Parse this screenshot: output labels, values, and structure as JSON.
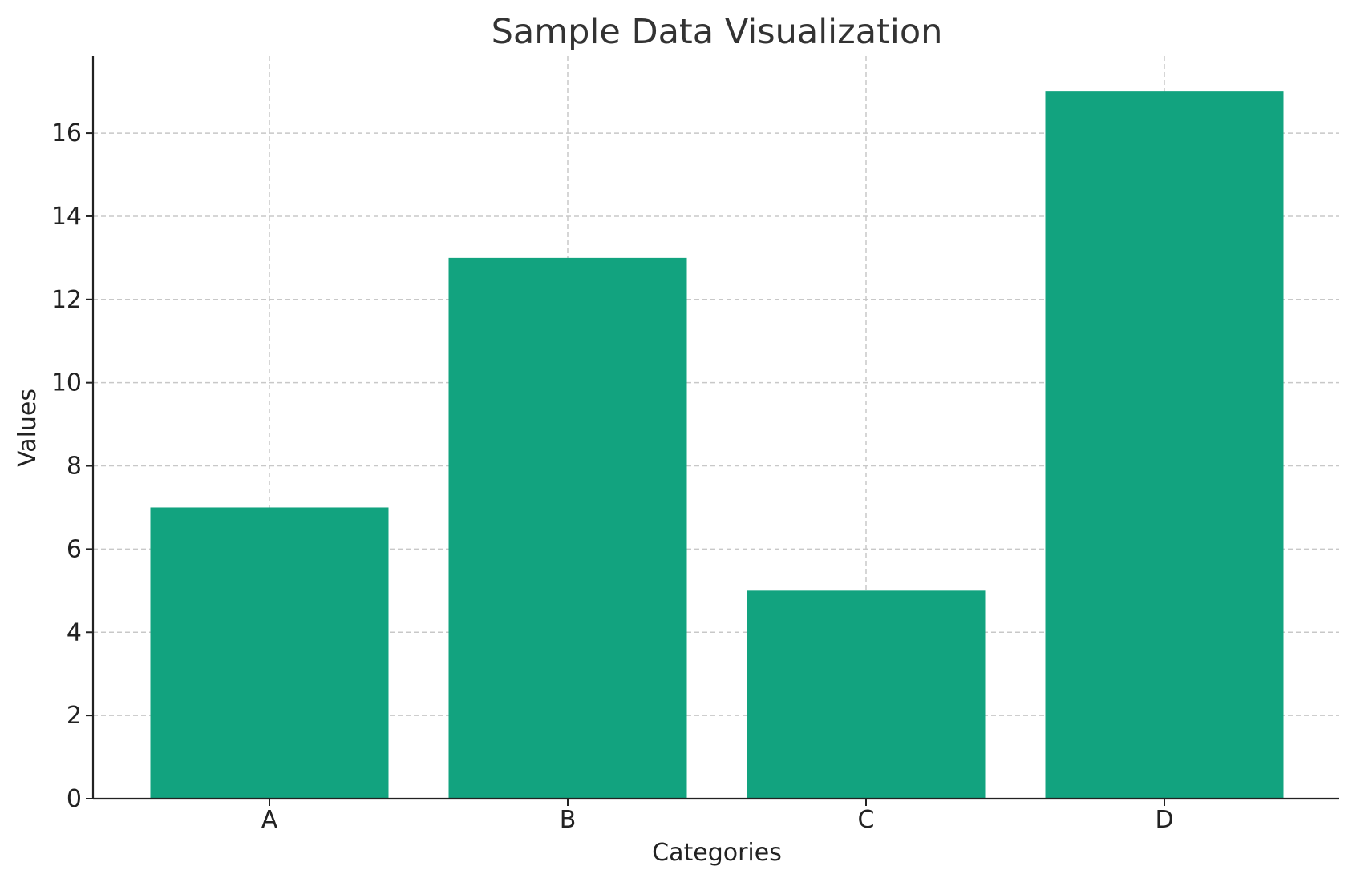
{
  "chart_data": {
    "type": "bar",
    "title": "Sample Data Visualization",
    "xlabel": "Categories",
    "ylabel": "Values",
    "categories": [
      "A",
      "B",
      "C",
      "D"
    ],
    "values": [
      7,
      13,
      5,
      17
    ],
    "ylim": [
      0,
      17.85
    ],
    "yticks": [
      0,
      2,
      4,
      6,
      8,
      10,
      12,
      14,
      16
    ],
    "grid": true,
    "bar_color": "#12a37f"
  }
}
